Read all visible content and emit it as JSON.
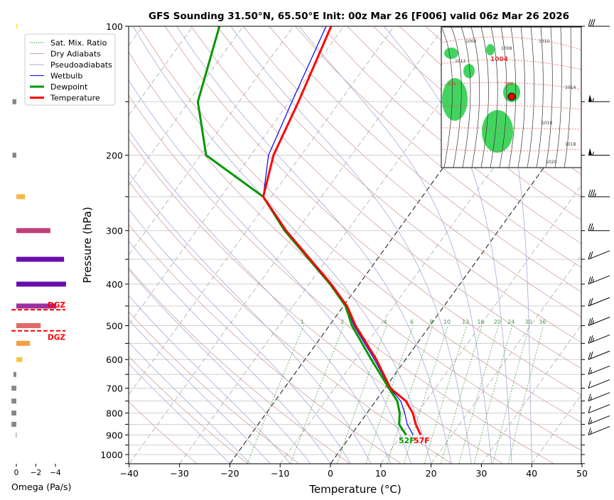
{
  "chart_data": {
    "type": "line",
    "subtype": "skew-t",
    "title": "GFS Sounding 31.50°N, 65.50°E Init: 00z Mar 26 [F006] valid 06z Mar 26 2026",
    "xlabel": "Temperature (°C)",
    "ylabel": "Pressure (hPa)",
    "xlim": [
      -40,
      50
    ],
    "ylim": [
      1050,
      100
    ],
    "x_ticks": [
      -40,
      -30,
      -20,
      -10,
      0,
      10,
      20,
      30,
      40,
      50
    ],
    "y_ticks": [
      100,
      200,
      300,
      400,
      500,
      600,
      700,
      800,
      900,
      1000
    ],
    "legend": {
      "placement": "top-left",
      "entries": [
        {
          "label": "Sat. Mix. Ratio",
          "color": "#2ca02c",
          "style": "dotted"
        },
        {
          "label": "Dry Adiabats",
          "color": "#d4a0a0",
          "style": "solid"
        },
        {
          "label": "Pseudoadiabats",
          "color": "#a8a8dc",
          "style": "solid"
        },
        {
          "label": "Wetbulb",
          "color": "#0000ff",
          "style": "solid"
        },
        {
          "label": "Dewpoint",
          "color": "#009900",
          "style": "thick"
        },
        {
          "label": "Temperature",
          "color": "#ff0000",
          "style": "thick"
        }
      ]
    },
    "mixing_ratio_labels": [
      "1",
      "2",
      "4",
      "6",
      "8",
      "10",
      "13",
      "16",
      "20",
      "24",
      "30",
      "36"
    ],
    "series": [
      {
        "name": "Temperature",
        "color": "#ff0000",
        "pressure": [
          900,
          850,
          800,
          750,
          700,
          600,
          500,
          450,
          400,
          300,
          250,
          200,
          150,
          100
        ],
        "values": [
          13.8,
          11.3,
          9.1,
          6.0,
          1.1,
          -5.8,
          -14.8,
          -19.3,
          -25.6,
          -42.2,
          -51.6,
          -55.5,
          -58.2,
          -62.5
        ]
      },
      {
        "name": "Dewpoint",
        "color": "#009900",
        "pressure": [
          900,
          850,
          800,
          750,
          700,
          600,
          500,
          450,
          400,
          300,
          250,
          200,
          150,
          100
        ],
        "values": [
          10.9,
          8.0,
          6.5,
          4.3,
          0.8,
          -6.8,
          -15.5,
          -19.6,
          -25.8,
          -42.5,
          -51.6,
          -68.9,
          -78.2,
          -84.7
        ]
      },
      {
        "name": "Wetbulb",
        "color": "#0000ff",
        "pressure": [
          900,
          850,
          800,
          750,
          700,
          600,
          500,
          450,
          400,
          300,
          250,
          200,
          150,
          100
        ],
        "values": [
          12.3,
          9.6,
          7.5,
          5.0,
          1.0,
          -6.2,
          -15.1,
          -19.4,
          -25.7,
          -42.3,
          -51.6,
          -56.5,
          -59.5,
          -63.5
        ]
      }
    ],
    "surface_labels": {
      "dewpoint": "52F",
      "temperature": "57F"
    },
    "omega": {
      "xlabel": "Omega (Pa/s)",
      "x_ticks": [
        "0",
        "−2",
        "−4"
      ],
      "pressure": [
        100,
        150,
        200,
        250,
        300,
        350,
        400,
        450,
        500,
        550,
        600,
        650,
        700,
        750,
        800,
        850,
        900
      ],
      "values": [
        -0.1,
        0.4,
        0.4,
        -0.9,
        -3.5,
        -4.9,
        -5.1,
        -4.1,
        -2.5,
        -1.4,
        -0.6,
        0.3,
        0.5,
        0.5,
        0.5,
        0.5,
        0.05
      ],
      "colors": [
        "#ffee00",
        "#888888",
        "#888888",
        "#f5b942",
        "#c0407a",
        "#6a0dad",
        "#6a0dad",
        "#9b30a0",
        "#e06868",
        "#f5a040",
        "#f5c842",
        "#888888",
        "#888888",
        "#888888",
        "#888888",
        "#888888",
        "#888888"
      ],
      "dgz": {
        "label": "DGZ",
        "top_hpa": 459,
        "bottom_hpa": 514,
        "color": "#ff0000"
      }
    },
    "wind_barbs": {
      "pressure": [
        100,
        150,
        200,
        250,
        300,
        350,
        400,
        450,
        500,
        550,
        600,
        650,
        700,
        750,
        800,
        850,
        900
      ],
      "speed_kt": [
        30,
        55,
        55,
        35,
        25,
        20,
        25,
        20,
        25,
        25,
        20,
        15,
        10,
        15,
        10,
        15,
        15
      ]
    },
    "inset_map": {
      "labels": [
        "1004",
        "1008",
        "1010",
        "1012",
        "1014",
        "1016",
        "1018",
        "1020",
        "1004",
        "558",
        "564"
      ],
      "marker_color": "#ff0000"
    }
  }
}
